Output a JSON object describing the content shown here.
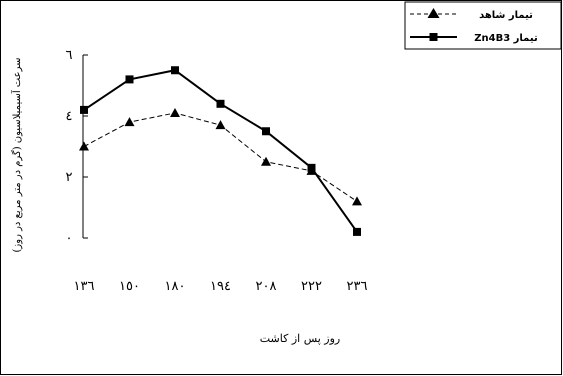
{
  "chart_data": {
    "type": "line",
    "title": "",
    "xlabel": "روز پس از کاشت",
    "ylabel": "سرعت آسیمیلاسیون (گرم در متر مربع در روز)",
    "categories": [
      "١٣٦",
      "١٥٠",
      "١٨٠",
      "١٩٤",
      "٢٠٨",
      "٢٢٢",
      "٢٣٦"
    ],
    "ylim": [
      0,
      6
    ],
    "yticks": [
      "٠",
      "٢",
      "٤",
      "٦"
    ],
    "grid": false,
    "legend_position": "top-right",
    "series": [
      {
        "name": "تیمار شاهد",
        "marker": "triangle",
        "line_style": "dashed",
        "color": "#000000",
        "values": [
          3.0,
          3.8,
          4.1,
          3.7,
          2.5,
          2.2,
          1.2
        ]
      },
      {
        "name": "تیمار Zn4B3",
        "marker": "square",
        "line_style": "solid",
        "color": "#000000",
        "values": [
          4.2,
          5.2,
          5.5,
          4.4,
          3.5,
          2.3,
          0.2
        ]
      }
    ]
  }
}
